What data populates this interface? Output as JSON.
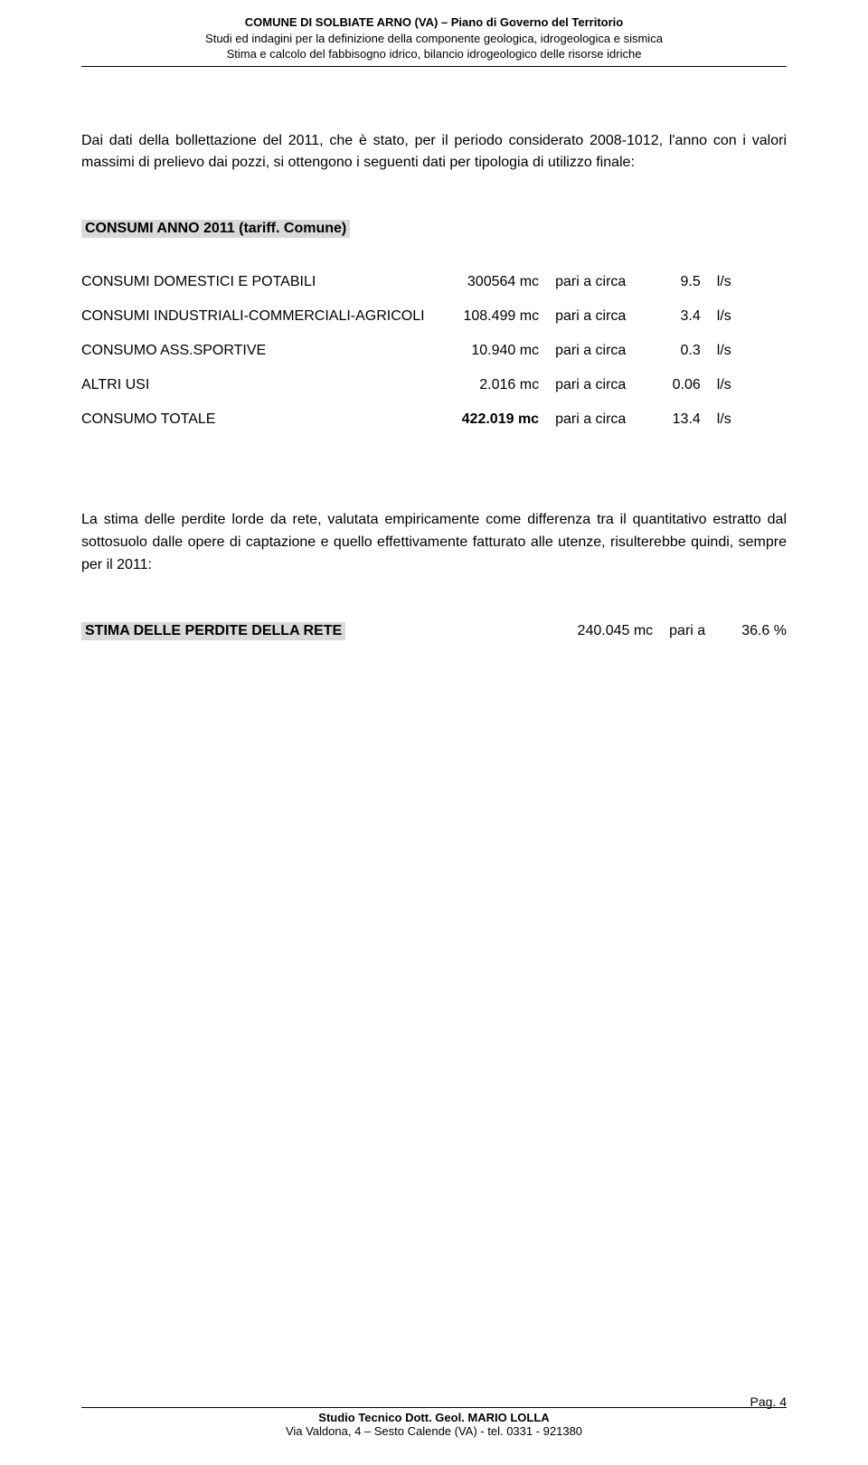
{
  "header": {
    "line1": "COMUNE DI SOLBIATE ARNO (VA) – Piano di Governo del Territorio",
    "line2": "Studi ed indagini per la definizione della componente geologica, idrogeologica e sismica",
    "line3": "Stima e calcolo del fabbisogno idrico, bilancio idrogeologico delle risorse idriche"
  },
  "intro": "Dai dati della bollettazione del 2011, che è stato, per il periodo considerato 2008-1012, l'anno con i valori massimi di prelievo dai pozzi, si ottengono i seguenti dati per tipologia di utilizzo finale:",
  "section1_title": "CONSUMI ANNO 2011 (tariff. Comune)",
  "pari_label": "pari a circa",
  "unit": "l/s",
  "rows": [
    {
      "label": "CONSUMI DOMESTICI E POTABILI",
      "val": "300564 mc",
      "num": "9.5"
    },
    {
      "label": "CONSUMI INDUSTRIALI-COMMERCIALI-AGRICOLI",
      "val": "108.499 mc",
      "num": "3.4"
    },
    {
      "label": "CONSUMO ASS.SPORTIVE",
      "val": "10.940 mc",
      "num": "0.3"
    },
    {
      "label": "ALTRI USI",
      "val": "2.016 mc",
      "num": "0.06"
    }
  ],
  "total": {
    "label": "CONSUMO TOTALE",
    "val": "422.019 mc",
    "num": "13.4"
  },
  "para2": "La stima delle perdite lorde da rete, valutata empiricamente come differenza tra il quantitativo estratto dal sottosuolo dalle opere di captazione e quello effettivamente fatturato alle utenze, risulterebbe quindi, sempre per il 2011:",
  "stima": {
    "title": "STIMA DELLE PERDITE DELLA RETE",
    "val": "240.045 mc",
    "pari": "pari a",
    "pct": "36.6 %"
  },
  "footer": {
    "line1": "Studio Tecnico Dott. Geol. MARIO LOLLA",
    "line2": "Via Valdona, 4 – Sesto Calende (VA) - tel. 0331 - 921380"
  },
  "pagenum": "Pag. 4"
}
